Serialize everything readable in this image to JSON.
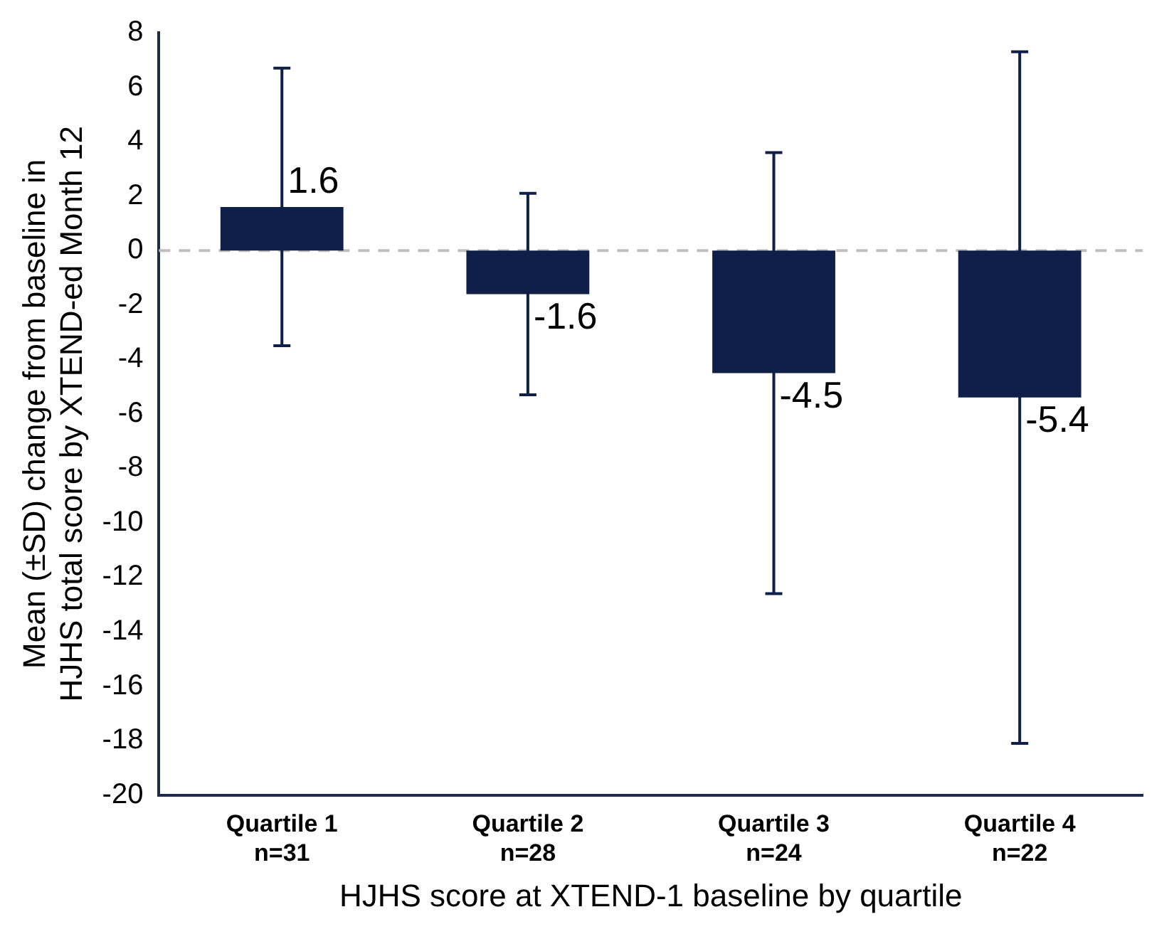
{
  "chart_data": {
    "type": "bar",
    "xlabel": "HJHS score at XTEND-1 baseline by quartile",
    "ylabel": "Mean (±SD) change from baseline in HJHS total score by XTEND-ed Month 12",
    "categories": [
      "Quartile 1\nn=31",
      "Quartile 2\nn=28",
      "Quartile 3\nn=24",
      "Quartile 4\nn=22"
    ],
    "values": [
      1.6,
      -1.6,
      -4.5,
      -5.4
    ],
    "errors": [
      5.1,
      3.7,
      8.1,
      12.7
    ],
    "color": "#0f1f4a",
    "data_labels": true,
    "ylim": [
      -20,
      8
    ],
    "yticks": [
      -20,
      -18,
      -16,
      -14,
      -12,
      -10,
      -8,
      -6,
      -4,
      -2,
      0,
      2,
      4,
      6,
      8
    ],
    "grid": false,
    "legend": false,
    "ref_lines": [
      {
        "axis": "y",
        "value": 0,
        "color": "#bfbfbf",
        "line_style": "dashed"
      }
    ]
  }
}
